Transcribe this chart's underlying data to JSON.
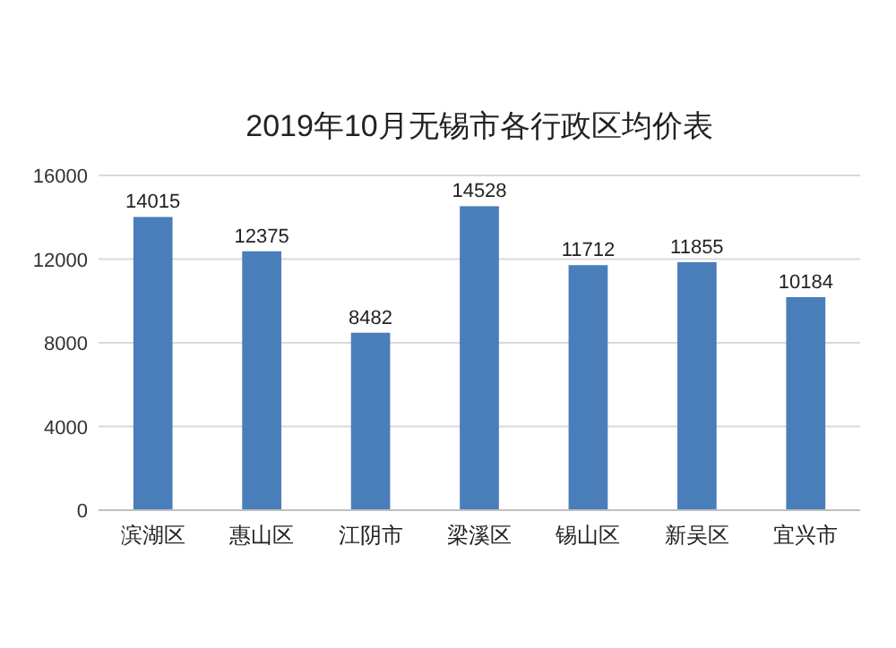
{
  "chart_data": {
    "type": "bar",
    "title": "2019年10月无锡市各行政区均价表",
    "categories": [
      "滨湖区",
      "惠山区",
      "江阴市",
      "梁溪区",
      "锡山区",
      "新吴区",
      "宜兴市"
    ],
    "values": [
      14015,
      12375,
      8482,
      14528,
      11712,
      11855,
      10184
    ],
    "color": "#4a7ebb",
    "ylim": [
      0,
      16000
    ],
    "yticks": [
      0,
      4000,
      8000,
      12000,
      16000
    ],
    "grid": "y",
    "data_labels": true
  }
}
